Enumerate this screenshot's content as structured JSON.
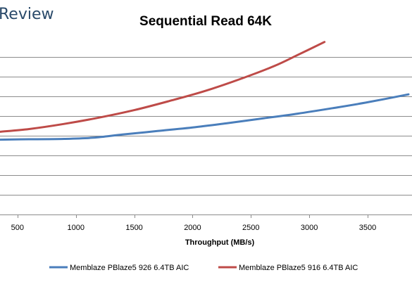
{
  "brand": "Review",
  "chart_data": {
    "type": "line",
    "title": "Sequential Read 64K",
    "xlabel": "Throughput (MB/s)",
    "ylabel": "",
    "xlim": [
      350,
      3880
    ],
    "ylim": [
      0,
      4.5
    ],
    "x_ticks": [
      500,
      1000,
      1500,
      2000,
      2500,
      3000,
      3500
    ],
    "y_gridlines": [
      0.5,
      1.0,
      1.5,
      2.0,
      2.5,
      3.0,
      3.5,
      4.0
    ],
    "grid": true,
    "legend": "bottom",
    "series": [
      {
        "name": "Memblaze PBlaze5 926 6.4TB AIC",
        "color": "#4a7ebb",
        "x": [
          350,
          600,
          900,
          1150,
          1400,
          1700,
          2000,
          2300,
          2600,
          2900,
          3200,
          3500,
          3850
        ],
        "y": [
          1.9,
          1.91,
          1.92,
          1.95,
          2.03,
          2.12,
          2.21,
          2.32,
          2.44,
          2.56,
          2.7,
          2.85,
          3.05
        ]
      },
      {
        "name": "Memblaze PBlaze5 916 6.4TB AIC",
        "color": "#be4b48",
        "x": [
          350,
          600,
          900,
          1200,
          1500,
          1800,
          2100,
          2400,
          2700,
          2900,
          3130
        ],
        "y": [
          2.1,
          2.17,
          2.3,
          2.46,
          2.65,
          2.88,
          3.13,
          3.43,
          3.77,
          4.05,
          4.38
        ]
      }
    ]
  }
}
